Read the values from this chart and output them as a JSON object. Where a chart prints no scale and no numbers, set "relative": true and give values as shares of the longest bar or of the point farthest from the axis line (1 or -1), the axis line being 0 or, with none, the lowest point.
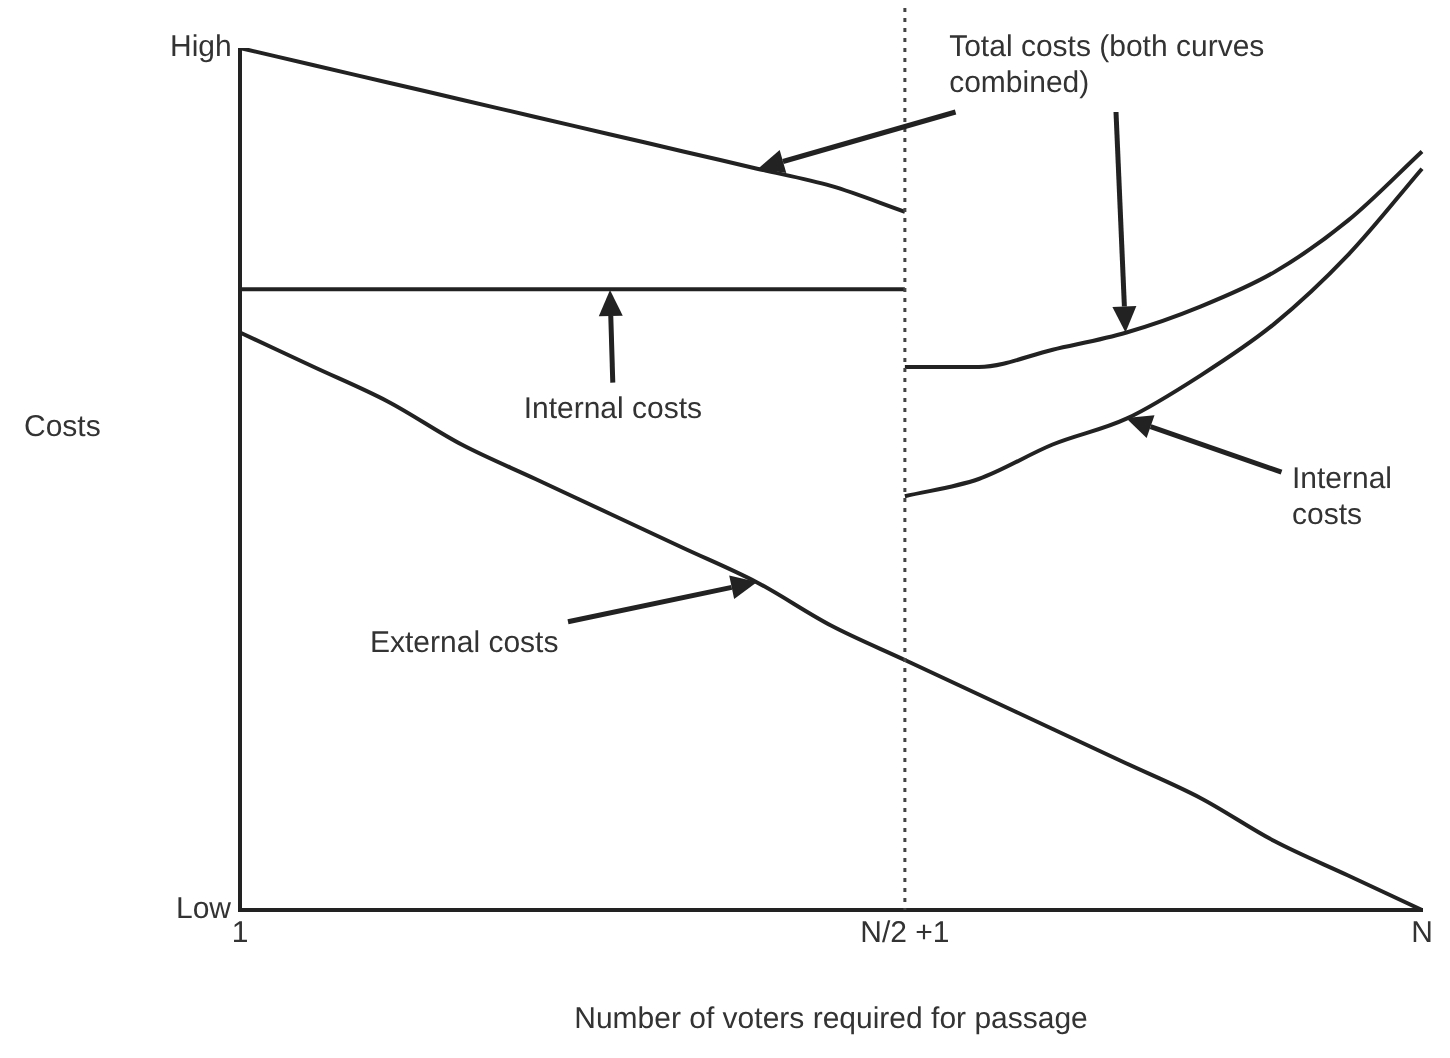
{
  "chart_data": {
    "type": "line",
    "xlabel": "Number of voters required for passage",
    "ylabel": "Costs",
    "relative": true,
    "categories": [
      "1",
      null,
      null,
      null,
      null,
      null,
      null,
      null,
      null,
      "N/2 +1",
      null,
      null,
      null,
      null,
      null,
      null,
      "N"
    ],
    "grid": false,
    "legend": false,
    "marker": "none",
    "line_style": "solid",
    "series": [
      {
        "color": "#222222",
        "values": [
          1,
          0.98,
          0.96,
          0.94,
          0.92,
          0.9,
          0.88,
          0.86,
          0.84,
          0.81,
          null,
          null,
          null,
          null,
          null,
          null,
          null
        ]
      },
      {
        "color": "#222222",
        "values": [
          0.72,
          0.72,
          0.72,
          0.72,
          0.72,
          0.72,
          0.72,
          0.72,
          0.72,
          0.72,
          null,
          null,
          null,
          null,
          null,
          null,
          null
        ]
      },
      {
        "color": "#222222",
        "values": [
          0.67,
          0.63,
          0.59,
          0.54,
          0.5,
          0.46,
          0.42,
          0.38,
          0.33,
          0.29,
          0.25,
          0.21,
          0.17,
          0.13,
          0.08,
          0.04,
          0
        ]
      },
      {
        "color": "#222222",
        "values": [
          null,
          null,
          null,
          null,
          null,
          null,
          null,
          null,
          null,
          0.63,
          0.63,
          0.65,
          0.67,
          0.7,
          0.74,
          0.8,
          0.88
        ]
      },
      {
        "color": "#222222",
        "values": [
          null,
          null,
          null,
          null,
          null,
          null,
          null,
          null,
          null,
          0.48,
          0.5,
          0.54,
          0.57,
          0.62,
          0.68,
          0.76,
          0.86
        ]
      }
    ],
    "ref_lines": [
      {
        "axis": "x",
        "value": "N/2 +1",
        "color": "#444444",
        "line_style": "dotted"
      }
    ],
    "annotations": [
      "Total costs (both curves combined)",
      "Internal costs",
      "Internal costs",
      "External costs",
      "High",
      "Low"
    ]
  }
}
